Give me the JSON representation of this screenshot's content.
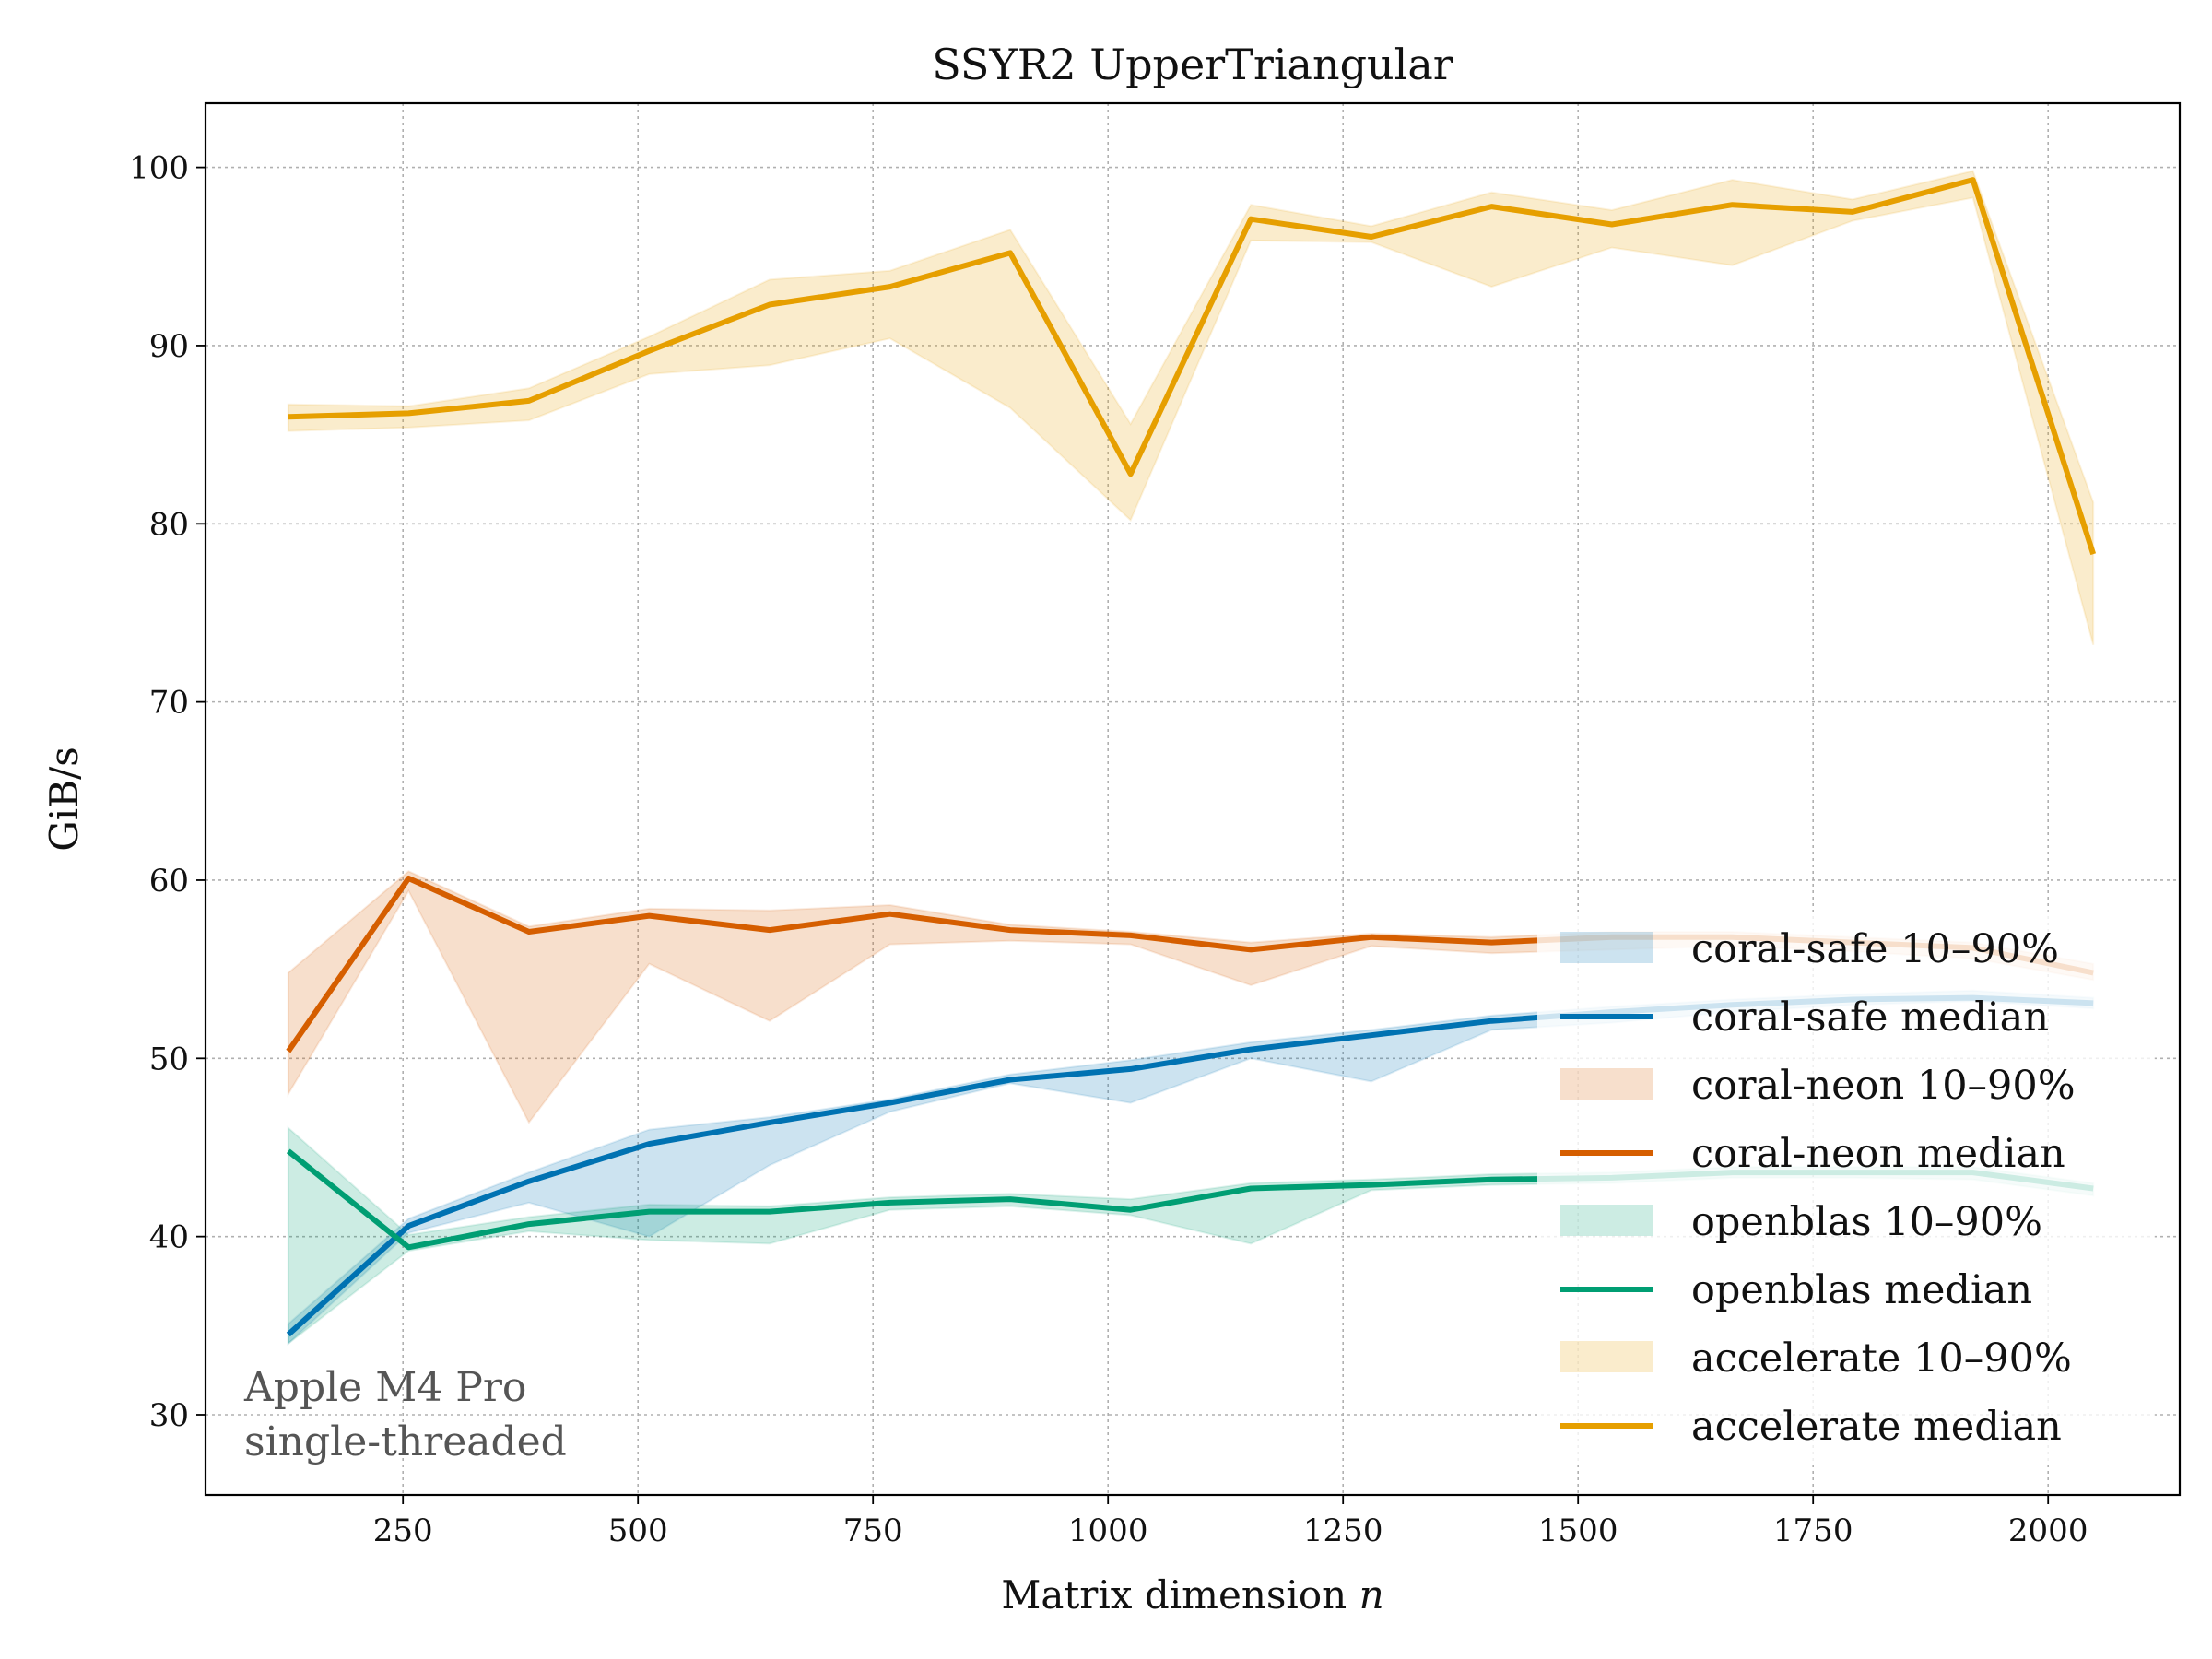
{
  "chart_data": {
    "type": "line",
    "title": "SSYR2 UpperTriangular",
    "xlabel": "Matrix dimension",
    "xlabel_var": "n",
    "ylabel": "GiB/s",
    "xlim": [
      40,
      2140
    ],
    "ylim": [
      25.5,
      103.6
    ],
    "xticks": [
      250,
      500,
      750,
      1000,
      1250,
      1500,
      1750,
      2000
    ],
    "yticks": [
      30,
      40,
      50,
      60,
      70,
      80,
      90,
      100
    ],
    "grid": true,
    "legend_position": "lower-right",
    "annotation": [
      "Apple M4 Pro",
      "single-threaded"
    ],
    "x": [
      128,
      256,
      384,
      512,
      640,
      768,
      896,
      1024,
      1152,
      1280,
      1408,
      1536,
      1664,
      1792,
      1920,
      2048
    ],
    "series": [
      {
        "key": "coral-safe",
        "color": "#0072B2",
        "median_label": "coral-safe median",
        "band_label": "coral-safe 10–90%",
        "median": [
          34.5,
          40.6,
          43.1,
          45.2,
          46.4,
          47.5,
          48.8,
          49.4,
          50.5,
          51.3,
          52.1,
          52.6,
          53.0,
          53.3,
          53.4,
          53.1
        ],
        "p10": [
          34.0,
          40.2,
          41.9,
          40.0,
          44.0,
          47.0,
          48.6,
          47.5,
          50.0,
          48.7,
          51.6,
          52.0,
          52.6,
          53.0,
          53.2,
          52.8
        ],
        "p90": [
          35.1,
          41.0,
          43.6,
          46.0,
          46.7,
          47.7,
          49.1,
          49.9,
          50.9,
          51.6,
          52.4,
          52.9,
          53.3,
          53.6,
          53.8,
          53.4
        ]
      },
      {
        "key": "coral-neon",
        "color": "#D55E00",
        "median_label": "coral-neon median",
        "band_label": "coral-neon 10–90%",
        "median": [
          50.4,
          60.1,
          57.1,
          58.0,
          57.2,
          58.1,
          57.2,
          56.9,
          56.1,
          56.8,
          56.5,
          56.8,
          56.8,
          56.5,
          56.2,
          54.8
        ],
        "p10": [
          48.0,
          59.4,
          46.4,
          55.3,
          52.1,
          56.4,
          56.6,
          56.4,
          54.1,
          56.3,
          55.9,
          56.1,
          56.3,
          56.0,
          55.6,
          54.4
        ],
        "p90": [
          54.8,
          60.5,
          57.4,
          58.4,
          58.3,
          58.6,
          57.5,
          57.1,
          56.5,
          57.0,
          56.8,
          57.1,
          57.1,
          56.8,
          56.5,
          55.3
        ]
      },
      {
        "key": "openblas",
        "color": "#009E73",
        "median_label": "openblas median",
        "band_label": "openblas 10–90%",
        "median": [
          44.8,
          39.4,
          40.7,
          41.4,
          41.4,
          41.9,
          42.1,
          41.5,
          42.7,
          42.9,
          43.2,
          43.3,
          43.6,
          43.6,
          43.6,
          42.7
        ],
        "p10": [
          34.0,
          39.2,
          40.3,
          39.8,
          39.6,
          41.5,
          41.7,
          41.2,
          39.6,
          42.6,
          42.9,
          43.0,
          43.3,
          43.3,
          43.2,
          42.3
        ],
        "p90": [
          46.1,
          40.1,
          41.1,
          41.8,
          41.7,
          42.2,
          42.4,
          42.1,
          43.0,
          43.2,
          43.5,
          43.6,
          43.9,
          43.9,
          43.9,
          43.0
        ]
      },
      {
        "key": "accelerate",
        "color": "#E69F00",
        "median_label": "accelerate median",
        "band_label": "accelerate 10–90%",
        "median": [
          86.0,
          86.2,
          86.9,
          89.7,
          92.3,
          93.3,
          95.2,
          82.8,
          97.1,
          96.1,
          97.8,
          96.8,
          97.9,
          97.5,
          99.3,
          78.3
        ],
        "p10": [
          85.2,
          85.4,
          85.8,
          88.4,
          88.9,
          90.4,
          86.5,
          80.2,
          95.9,
          95.8,
          93.3,
          95.5,
          94.5,
          97.0,
          98.3,
          73.2
        ],
        "p90": [
          86.7,
          86.6,
          87.6,
          90.5,
          93.7,
          94.2,
          96.5,
          85.6,
          97.9,
          96.7,
          98.6,
          97.6,
          99.3,
          98.2,
          99.8,
          81.2
        ]
      }
    ]
  }
}
